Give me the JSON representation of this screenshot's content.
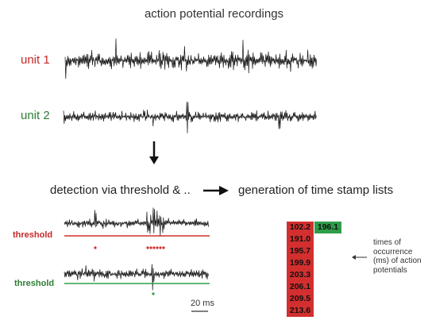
{
  "title": "action potential recordings",
  "units": [
    {
      "label": "unit 1",
      "color": "#c62828"
    },
    {
      "label": "unit 2",
      "color": "#2e7d32"
    }
  ],
  "detection": {
    "label": "detection via threshold  & .."
  },
  "generation": {
    "label": "generation of time stamp lists"
  },
  "thresholds": [
    {
      "label": "threshold",
      "color": "#c62828"
    },
    {
      "label": "threshold",
      "color": "#2e7d32"
    }
  ],
  "scalebar": {
    "label": "20 ms"
  },
  "timestamps": {
    "unit1": [
      "102.2",
      "191.0",
      "195.7",
      "199.9",
      "203.3",
      "206.1",
      "209.5",
      "213.6"
    ],
    "unit2": [
      "196.1"
    ],
    "unit1_color": "#d32f2f",
    "unit2_color": "#2e9d4a"
  },
  "caption": "times of occurrence (ms) of action potentials"
}
